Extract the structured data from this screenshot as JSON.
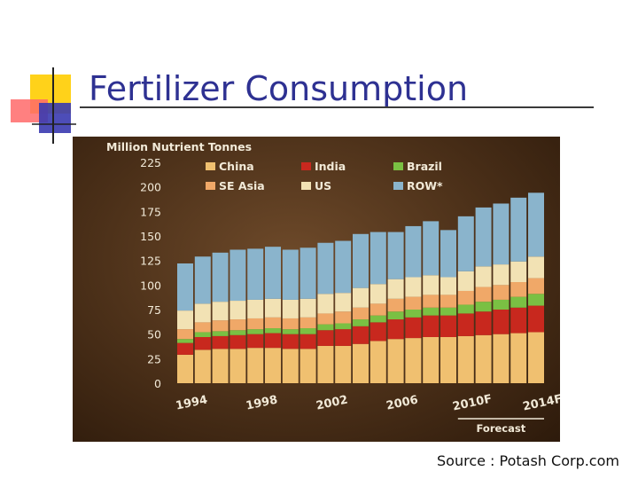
{
  "slide": {
    "title": "Fertilizer Consumption",
    "source": "Source : Potash Corp.com"
  },
  "chart_data": {
    "type": "bar",
    "stacked": true,
    "ylabel": "Million Nutrient Tonnes",
    "ylim": [
      0,
      225
    ],
    "yticks": [
      0,
      25,
      50,
      75,
      100,
      125,
      150,
      175,
      200,
      225
    ],
    "grid": false,
    "legend_position": "top",
    "annotation": "Forecast",
    "tick_labels": [
      {
        "index": 0,
        "label": "1994"
      },
      {
        "index": 4,
        "label": "1998"
      },
      {
        "index": 8,
        "label": "2002"
      },
      {
        "index": 12,
        "label": "2006"
      },
      {
        "index": 16,
        "label": "2010F"
      },
      {
        "index": 20,
        "label": "2014F"
      }
    ],
    "categories": [
      "1994",
      "1995",
      "1996",
      "1997",
      "1998",
      "1999",
      "2000",
      "2001",
      "2002",
      "2003",
      "2004",
      "2005",
      "2006",
      "2007",
      "2008",
      "2009",
      "2010F",
      "2011F",
      "2012F",
      "2013F",
      "2014F"
    ],
    "series": [
      {
        "name": "China",
        "color": "#f0c070",
        "values": [
          29,
          34,
          35,
          35,
          36,
          36,
          35,
          35,
          38,
          38,
          40,
          43,
          45,
          46,
          47,
          47,
          48,
          49,
          50,
          51,
          52
        ]
      },
      {
        "name": "India",
        "color": "#c8281e",
        "values": [
          12,
          13,
          13,
          14,
          14,
          15,
          15,
          15,
          16,
          17,
          18,
          19,
          20,
          21,
          22,
          22,
          23,
          24,
          25,
          26,
          27
        ]
      },
      {
        "name": "Brazil",
        "color": "#7ac043",
        "values": [
          4,
          5,
          5,
          5,
          5,
          5,
          5,
          6,
          6,
          6,
          7,
          7,
          8,
          8,
          8,
          8,
          9,
          10,
          10,
          11,
          12
        ]
      },
      {
        "name": "SE Asia",
        "color": "#f0a868",
        "values": [
          10,
          10,
          11,
          11,
          11,
          11,
          11,
          11,
          11,
          12,
          12,
          12,
          13,
          13,
          13,
          13,
          14,
          15,
          15,
          15,
          16
        ]
      },
      {
        "name": "US",
        "color": "#f2e2b4",
        "values": [
          19,
          19,
          19,
          19,
          19,
          19,
          19,
          19,
          20,
          19,
          20,
          20,
          20,
          20,
          20,
          18,
          20,
          21,
          21,
          21,
          22
        ]
      },
      {
        "name": "ROW*",
        "color": "#8ab4cc",
        "values": [
          48,
          48,
          50,
          52,
          52,
          53,
          51,
          52,
          52,
          53,
          55,
          53,
          48,
          52,
          55,
          48,
          56,
          60,
          62,
          65,
          65
        ]
      }
    ]
  }
}
